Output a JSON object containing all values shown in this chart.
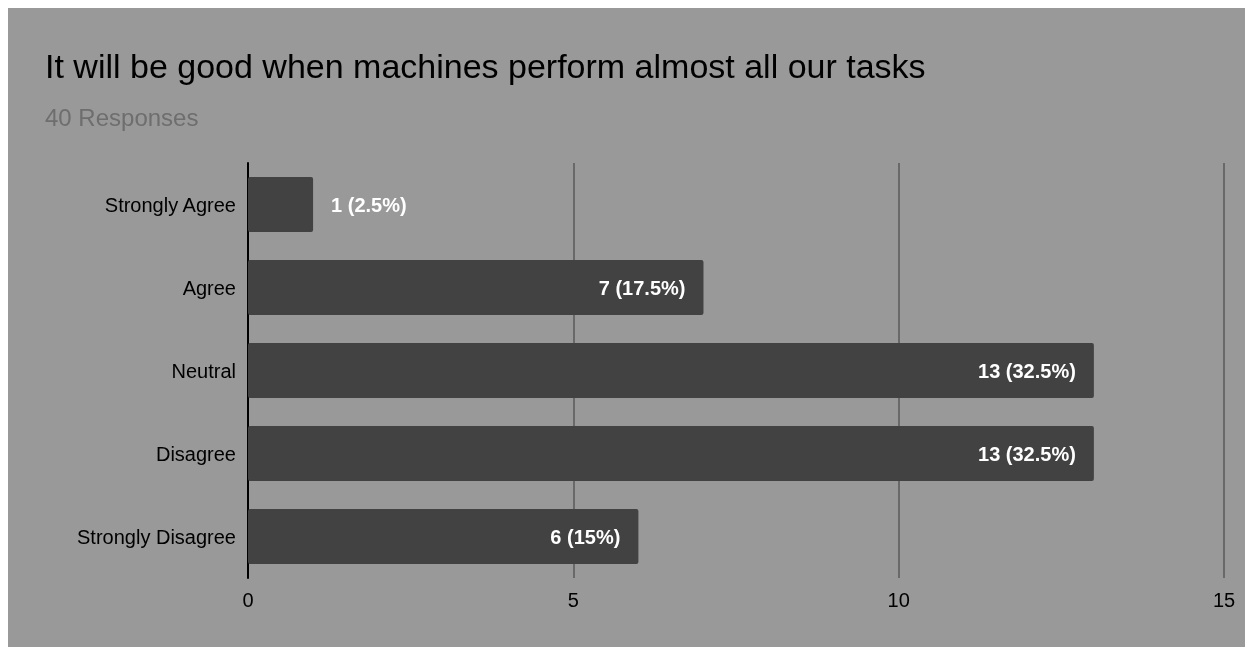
{
  "chart_data": {
    "type": "bar",
    "orientation": "horizontal",
    "title": "It will be good when machines perform almost all our tasks",
    "subtitle": "40 Responses",
    "categories": [
      "Strongly Agree",
      "Agree",
      "Neutral",
      "Disagree",
      "Strongly Disagree"
    ],
    "values": [
      1,
      7,
      13,
      13,
      6
    ],
    "color": "#424242",
    "value_labels": [
      "1 (2.5%)",
      "7 (17.5%)",
      "13 (32.5%)",
      "13 (32.5%)",
      "6 (15%)"
    ],
    "xlim": [
      0,
      15
    ],
    "xticks": [
      0,
      5,
      10,
      15
    ],
    "grid": "x"
  }
}
